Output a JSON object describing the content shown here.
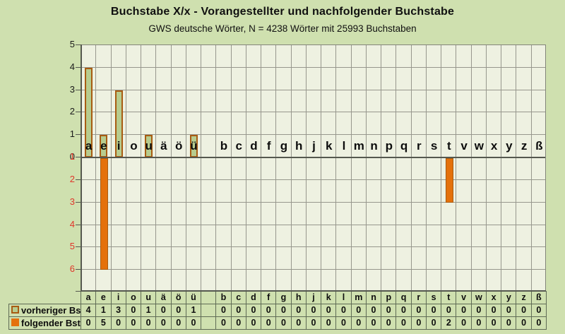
{
  "title": "Buchstabe X/x - Vorangestellter und nachfolgender Buchstabe",
  "subtitle": "GWS deutsche Wörter, N = 4238 Wörter mit 25993 Buchstaben",
  "colors": {
    "page_bg": "#cfe0af",
    "plot_bg": "#eef1e1",
    "grid": "#97978d",
    "up_bar_fill": "#b7cc8e",
    "down_bar_fill": "#e4710b",
    "bar_border": "#a85c12",
    "upper_axis_label": "#1a1a1a",
    "lower_axis_label": "#e0362a",
    "table_border": "#5f6b55"
  },
  "chart_data": {
    "type": "bar",
    "subtype": "diverging-vertical",
    "grid": true,
    "legend_position": "table-row-labels",
    "categories": [
      "a",
      "e",
      "i",
      "o",
      "u",
      "ä",
      "ö",
      "ü",
      "",
      "b",
      "c",
      "d",
      "f",
      "g",
      "h",
      "j",
      "k",
      "l",
      "m",
      "n",
      "p",
      "q",
      "r",
      "s",
      "t",
      "v",
      "w",
      "x",
      "y",
      "z",
      "ß"
    ],
    "series": [
      {
        "name": "vorheriger Bst.",
        "direction": "up",
        "values": [
          4,
          1,
          3,
          0,
          1,
          0,
          0,
          1,
          null,
          0,
          0,
          0,
          0,
          0,
          0,
          0,
          0,
          0,
          0,
          0,
          0,
          0,
          0,
          0,
          0,
          0,
          0,
          0,
          0,
          0,
          0
        ]
      },
      {
        "name": "folgender Bst.",
        "direction": "down",
        "values": [
          0,
          5,
          0,
          0,
          0,
          0,
          0,
          0,
          null,
          0,
          0,
          0,
          0,
          0,
          0,
          0,
          0,
          0,
          0,
          0,
          0,
          0,
          0,
          0,
          2,
          0,
          0,
          0,
          0,
          0,
          0
        ]
      }
    ],
    "y_axis": {
      "upper_ticks": [
        "5",
        "4",
        "3",
        "2",
        "1",
        "0"
      ],
      "lower_ticks": [
        "1",
        "2",
        "3",
        "4",
        "5",
        "6"
      ],
      "ylim_up": 5,
      "ylim_down": 6
    }
  },
  "table": {
    "row_labels": [
      "vorheriger Bst.",
      "folgender Bst."
    ]
  }
}
